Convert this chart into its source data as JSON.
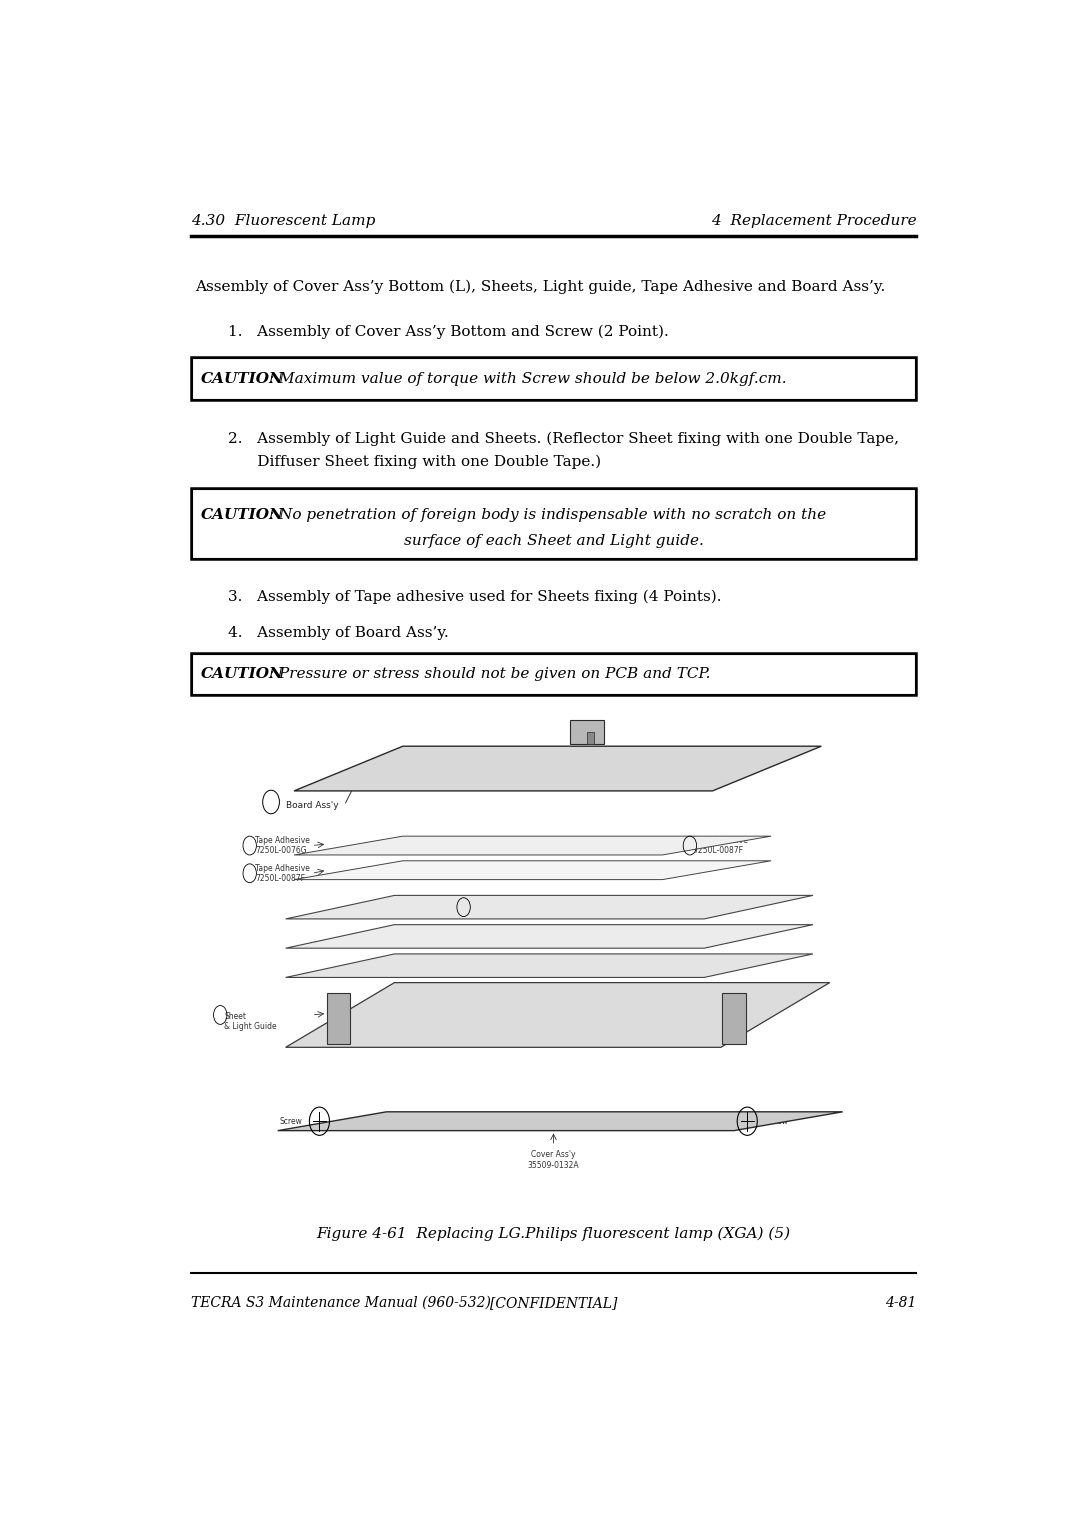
{
  "page_width": 10.8,
  "page_height": 15.28,
  "bg_color": "#ffffff",
  "header_left": "4.30  Fluorescent Lamp",
  "header_right": "4  Replacement Procedure",
  "footer_left": "TECRA S3 Maintenance Manual (960-532)",
  "footer_center": "[CONFIDENTIAL]",
  "footer_right": "4-81",
  "intro_text": "Assembly of Cover Ass’y Bottom (L), Sheets, Light guide, Tape Adhesive and Board Ass’y.",
  "step1": "1.   Assembly of Cover Ass’y Bottom and Screw (2 Point).",
  "caution1_bold": "CAUTION",
  "caution1_rest": ": Maximum value of torque with Screw should be below 2.0kgf.cm.",
  "step2_line1": "2.   Assembly of Light Guide and Sheets. (Reflector Sheet fixing with one Double Tape,",
  "step2_line2": "      Diffuser Sheet fixing with one Double Tape.)",
  "caution2_bold": "CAUTION",
  "caution2_rest1": ": No penetration of foreign body is indispensable with no scratch on the",
  "caution2_rest2": "surface of each Sheet and Light guide.",
  "step3": "3.   Assembly of Tape adhesive used for Sheets fixing (4 Points).",
  "step4": "4.   Assembly of Board Ass’y.",
  "caution3_bold": "CAUTION",
  "caution3_rest": ": Pressure or stress should not be given on PCB and TCP.",
  "figure_caption": "Figure 4-61  Replacing LG.Philips fluorescent lamp (XGA) (5)",
  "text_color": "#000000",
  "header_color": "#000000",
  "font_size_header": 11,
  "font_size_body": 11,
  "font_size_footer": 10,
  "font_size_caption": 11
}
